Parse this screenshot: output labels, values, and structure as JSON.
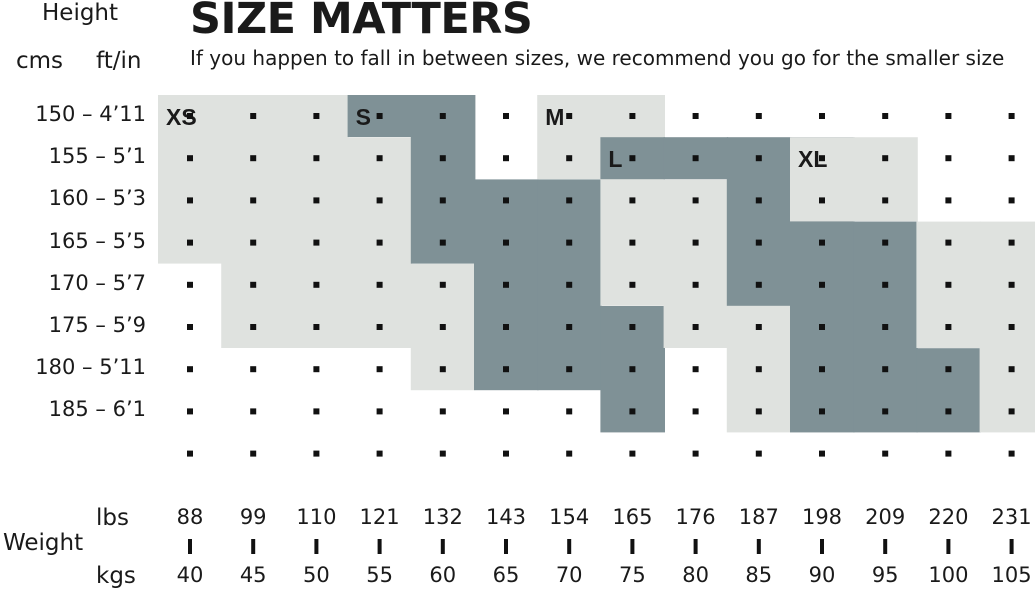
{
  "header": {
    "height_title": "Height",
    "cms": "cms",
    "ftin": "ft/in",
    "title": "SIZE MATTERS",
    "subtitle": "If you happen to fall in between sizes, we recommend you go for the smaller size",
    "weight_title": "Weight",
    "lbs": "lbs",
    "kgs": "kgs"
  },
  "chart_data": {
    "type": "heatmap",
    "title": "SIZE MATTERS",
    "subtitle": "If you happen to fall in between sizes, we recommend you go for the smaller size",
    "ylabel": "Height",
    "xlabel": "Weight",
    "rows": [
      "150 – 4’11",
      "155 – 5’1",
      "160 – 5’3",
      "165 – 5’5",
      "170 – 5’7",
      "175 – 5’9",
      "180 – 5’11",
      "185 – 6’1"
    ],
    "lbs": [
      "88",
      "99",
      "110",
      "121",
      "132",
      "143",
      "154",
      "165",
      "176",
      "187",
      "198",
      "209",
      "220",
      "231"
    ],
    "kgs": [
      "40",
      "45",
      "50",
      "55",
      "60",
      "65",
      "70",
      "75",
      "80",
      "85",
      "90",
      "95",
      "100",
      "105"
    ],
    "colors": {
      "light": "#dfe2df",
      "dark": "#7f9196",
      "dot": "#111111",
      "text": "#1a1a1a"
    },
    "sizes": [
      {
        "label": "XS",
        "shade": "light",
        "columns": [
          {
            "kg": 40,
            "height_from": 150,
            "height_to": 165
          },
          {
            "kg": 45,
            "height_from": 150,
            "height_to": 175
          },
          {
            "kg": 50,
            "height_from": 150,
            "height_to": 175
          },
          {
            "kg": 55,
            "height_from": 155,
            "height_to": 175
          },
          {
            "kg": 60,
            "height_from": 170,
            "height_to": 180
          }
        ]
      },
      {
        "label": "S",
        "shade": "dark",
        "columns": [
          {
            "kg": 55,
            "height_from": 150,
            "height_to": 150
          },
          {
            "kg": 60,
            "height_from": 150,
            "height_to": 165
          },
          {
            "kg": 65,
            "height_from": 160,
            "height_to": 180
          },
          {
            "kg": 70,
            "height_from": 160,
            "height_to": 180
          },
          {
            "kg": 75,
            "height_from": 175,
            "height_to": 185
          }
        ]
      },
      {
        "label": "M",
        "shade": "light",
        "columns": [
          {
            "kg": 70,
            "height_from": 150,
            "height_to": 155
          },
          {
            "kg": 75,
            "height_from": 150,
            "height_to": 170
          },
          {
            "kg": 80,
            "height_from": 160,
            "height_to": 175
          },
          {
            "kg": 85,
            "height_from": 160,
            "height_to": 185
          },
          {
            "kg": 90,
            "height_from": 175,
            "height_to": 185
          }
        ]
      },
      {
        "label": "L",
        "shade": "dark",
        "columns": [
          {
            "kg": 75,
            "height_from": 155,
            "height_to": 155
          },
          {
            "kg": 80,
            "height_from": 155,
            "height_to": 155
          },
          {
            "kg": 85,
            "height_from": 155,
            "height_to": 170
          },
          {
            "kg": 90,
            "height_from": 155,
            "height_to": 185
          },
          {
            "kg": 95,
            "height_from": 165,
            "height_to": 185
          },
          {
            "kg": 100,
            "height_from": 180,
            "height_to": 185
          }
        ]
      },
      {
        "label": "XL",
        "shade": "light",
        "columns": [
          {
            "kg": 90,
            "height_from": 155,
            "height_to": 160
          },
          {
            "kg": 95,
            "height_from": 155,
            "height_to": 160
          },
          {
            "kg": 100,
            "height_from": 165,
            "height_to": 175
          },
          {
            "kg": 105,
            "height_from": 165,
            "height_to": 185
          }
        ]
      }
    ]
  }
}
